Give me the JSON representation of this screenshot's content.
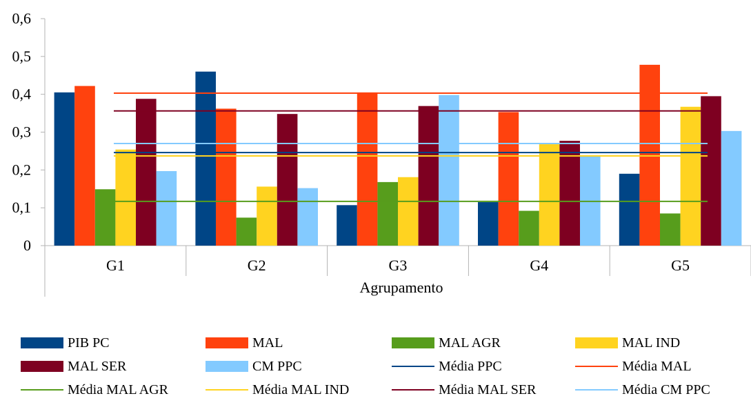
{
  "chart_data": {
    "type": "bar",
    "title": "",
    "xlabel": "Agrupamento",
    "ylabel": "",
    "ylim": [
      0,
      0.6
    ],
    "yticks": [
      "0",
      "0,1",
      "0,2",
      "0,3",
      "0,4",
      "0,5",
      "0,6"
    ],
    "categories": [
      "G1",
      "G2",
      "G3",
      "G4",
      "G5"
    ],
    "grid": false,
    "legend_position": "bottom",
    "series": [
      {
        "name": "PIB PC",
        "color": "#004586",
        "values": [
          0.405,
          0.46,
          0.107,
          0.115,
          0.19
        ]
      },
      {
        "name": "MAL",
        "color": "#ff420e",
        "values": [
          0.422,
          0.362,
          0.405,
          0.353,
          0.478
        ]
      },
      {
        "name": "MAL AGR",
        "color": "#579d1c",
        "values": [
          0.149,
          0.074,
          0.168,
          0.092,
          0.085
        ]
      },
      {
        "name": "MAL IND",
        "color": "#ffd320",
        "values": [
          0.254,
          0.156,
          0.181,
          0.268,
          0.367
        ]
      },
      {
        "name": "MAL SER",
        "color": "#7e0021",
        "values": [
          0.388,
          0.348,
          0.369,
          0.277,
          0.395
        ]
      },
      {
        "name": "CM PPC",
        "color": "#83caff",
        "values": [
          0.197,
          0.152,
          0.398,
          0.238,
          0.303
        ]
      }
    ],
    "reference_lines": [
      {
        "name": "Média PPC",
        "color": "#004586",
        "value": 0.246
      },
      {
        "name": "Média MAL",
        "color": "#ff420e",
        "value": 0.403
      },
      {
        "name": "Média MAL AGR",
        "color": "#579d1c",
        "value": 0.117
      },
      {
        "name": "Média MAL IND",
        "color": "#ffd320",
        "value": 0.237
      },
      {
        "name": "Média MAL SER",
        "color": "#7e0021",
        "value": 0.356
      },
      {
        "name": "Média CM PPC",
        "color": "#83caff",
        "value": 0.27
      }
    ]
  },
  "legend": {
    "items": [
      {
        "label": "PIB PC",
        "kind": "box",
        "color": "#004586"
      },
      {
        "label": "MAL",
        "kind": "box",
        "color": "#ff420e"
      },
      {
        "label": "MAL AGR",
        "kind": "box",
        "color": "#579d1c"
      },
      {
        "label": "MAL IND",
        "kind": "box",
        "color": "#ffd320"
      },
      {
        "label": "MAL SER",
        "kind": "box",
        "color": "#7e0021"
      },
      {
        "label": "CM PPC",
        "kind": "box",
        "color": "#83caff"
      },
      {
        "label": "Média PPC",
        "kind": "line",
        "color": "#004586"
      },
      {
        "label": "Média MAL",
        "kind": "line",
        "color": "#ff420e"
      },
      {
        "label": "Média MAL AGR",
        "kind": "line",
        "color": "#579d1c"
      },
      {
        "label": "Média MAL IND",
        "kind": "line",
        "color": "#ffd320"
      },
      {
        "label": "Média MAL SER",
        "kind": "line",
        "color": "#7e0021"
      },
      {
        "label": "Média CM PPC",
        "kind": "line",
        "color": "#83caff"
      }
    ]
  }
}
